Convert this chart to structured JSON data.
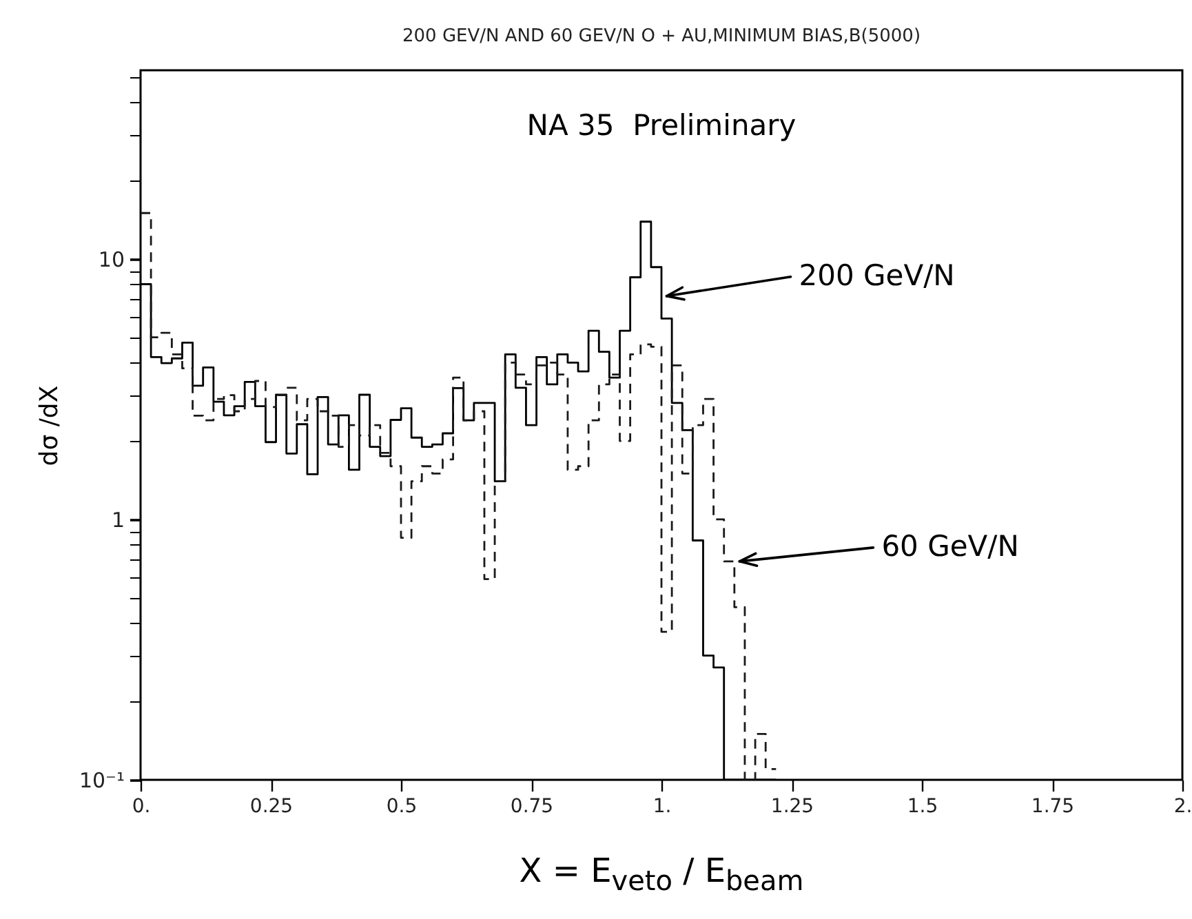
{
  "chart_data": {
    "type": "histogram",
    "title": "200 GEV/N AND 60 GEV/N O + AU,MINIMUM BIAS,B(5000)",
    "xlabel": "X = E$_{veto}$ / E$_{beam}$",
    "ylabel": "dσ /dX",
    "bins": [
      0,
      0.02,
      0.04,
      0.06,
      0.08,
      0.1,
      0.12,
      0.14,
      0.16,
      0.18,
      0.2,
      0.22,
      0.24,
      0.26,
      0.28,
      0.3,
      0.32,
      0.34,
      0.36,
      0.38,
      0.4,
      0.42,
      0.44,
      0.46,
      0.48,
      0.5,
      0.52,
      0.54,
      0.56,
      0.58,
      0.6,
      0.62,
      0.64,
      0.66,
      0.68,
      0.7,
      0.72,
      0.74,
      0.76,
      0.78,
      0.8,
      0.82,
      0.84,
      0.86,
      0.88,
      0.9,
      0.92,
      0.94,
      0.96,
      0.98,
      1.0,
      1.02,
      1.04,
      1.06,
      1.08,
      1.1,
      1.12,
      1.14,
      1.16,
      1.18,
      1.2,
      1.22
    ],
    "series": [
      {
        "color": "#000000",
        "line_style": "solid",
        "values": [
          8.0,
          4.2,
          3.98,
          4.15,
          4.77,
          3.26,
          3.83,
          2.83,
          2.51,
          2.72,
          3.37,
          2.72,
          1.98,
          3.01,
          1.79,
          2.32,
          1.49,
          2.95,
          1.94,
          2.51,
          1.55,
          3.01,
          1.9,
          1.75,
          2.41,
          2.67,
          2.06,
          1.9,
          1.94,
          2.14,
          3.19,
          2.4,
          2.8,
          2.8,
          1.4,
          4.3,
          3.2,
          2.3,
          4.2,
          3.3,
          4.3,
          4.0,
          3.7,
          5.3,
          4.4,
          3.5,
          5.3,
          8.5,
          13.9,
          9.3,
          5.9,
          2.8,
          2.2,
          0.83,
          0.3,
          0.27,
          null,
          null,
          null,
          null,
          null
        ]
      },
      {
        "color": "#1a1a1a",
        "line_style": "dashed",
        "values": [
          15,
          5.0,
          5.2,
          4.3,
          3.8,
          2.5,
          2.4,
          2.9,
          3.0,
          2.6,
          2.9,
          3.4,
          2.7,
          3.0,
          3.2,
          2.4,
          2.9,
          2.6,
          2.5,
          1.9,
          2.3,
          2.1,
          2.3,
          1.8,
          1.6,
          0.85,
          1.4,
          1.6,
          1.5,
          1.7,
          3.5,
          2.4,
          2.6,
          0.59,
          1.4,
          4.0,
          3.6,
          3.3,
          3.9,
          4.0,
          3.6,
          1.55,
          1.6,
          2.4,
          3.3,
          3.6,
          2.0,
          4.3,
          4.7,
          4.6,
          0.37,
          3.9,
          1.5,
          2.3,
          2.9,
          1.0,
          0.69,
          0.46,
          null,
          0.15,
          0.11
        ]
      }
    ],
    "annotations": [
      "NA 35  Preliminary",
      {
        "text": "200 GeV/N",
        "x": 1.01,
        "y": 7.2
      },
      {
        "text": "60 GeV/N",
        "x": 1.15,
        "y": 0.69
      }
    ],
    "log": true,
    "xlim": [
      0,
      2
    ],
    "ylim": [
      0.1,
      53
    ],
    "xticks": [
      {
        "value": 0,
        "label": "0."
      },
      0.25,
      0.5,
      0.75,
      {
        "value": 1,
        "label": "1."
      },
      1.25,
      1.5,
      1.75,
      {
        "value": 2,
        "label": "2."
      }
    ],
    "yticks": [
      {
        "value": 0.1,
        "label": "10⁻¹"
      },
      {
        "value": 0.2,
        "label": null
      },
      {
        "value": 0.3,
        "label": null
      },
      {
        "value": 0.4,
        "label": null
      },
      {
        "value": 0.5,
        "label": null
      },
      {
        "value": 0.6,
        "label": null
      },
      {
        "value": 0.7,
        "label": null
      },
      {
        "value": 0.8,
        "label": null
      },
      {
        "value": 0.9,
        "label": null
      },
      1,
      {
        "value": 2,
        "label": null
      },
      {
        "value": 3,
        "label": null
      },
      {
        "value": 4,
        "label": null
      },
      {
        "value": 5,
        "label": null
      },
      {
        "value": 6,
        "label": null
      },
      {
        "value": 7,
        "label": null
      },
      {
        "value": 8,
        "label": null
      },
      {
        "value": 9,
        "label": null
      },
      10,
      {
        "value": 20,
        "label": null
      },
      {
        "value": 30,
        "label": null
      },
      {
        "value": 40,
        "label": null
      },
      {
        "value": 50,
        "label": null
      }
    ],
    "grid": false
  }
}
